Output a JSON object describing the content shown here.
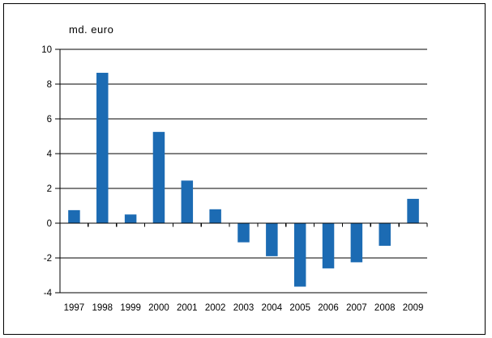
{
  "frame": {
    "background": "#ffffff",
    "border_color": "#000000"
  },
  "chart_data": {
    "type": "bar",
    "title": "",
    "xlabel": "",
    "ylabel": "md. euro",
    "categories": [
      "1997",
      "1998",
      "1999",
      "2000",
      "2001",
      "2002",
      "2003",
      "2004",
      "2005",
      "2006",
      "2007",
      "2008",
      "2009"
    ],
    "values": [
      0.75,
      8.65,
      0.5,
      5.25,
      2.45,
      0.8,
      -1.1,
      -1.9,
      -3.65,
      -2.6,
      -2.25,
      -1.3,
      1.4
    ],
    "ylim": [
      -4,
      10
    ],
    "yticks": [
      10,
      8,
      6,
      4,
      2,
      0,
      -2,
      -4
    ],
    "ytick_labels": [
      "10",
      "8",
      "6",
      "4",
      "2",
      "0",
      "-2",
      "-4"
    ],
    "grid": true,
    "legend": false,
    "legend_position": "none",
    "bar_color": "#1c6bb3",
    "axis_color": "#000000",
    "text_color": "#000000"
  }
}
